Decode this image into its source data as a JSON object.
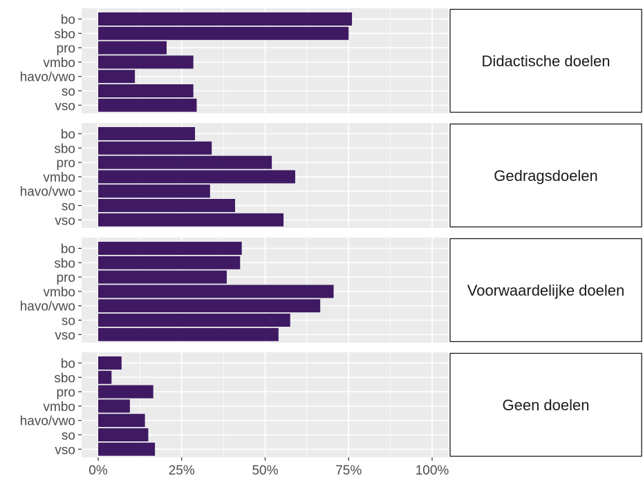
{
  "chart_data": {
    "type": "bar",
    "orientation": "horizontal",
    "categories": [
      "bo",
      "sbo",
      "pro",
      "vmbo",
      "havo/vwo",
      "so",
      "vso"
    ],
    "xlim": [
      0,
      100
    ],
    "x_ticks": [
      "0%",
      "25%",
      "50%",
      "75%",
      "100%"
    ],
    "bar_color": "#3f1a63",
    "panel_color": "#ebebeb",
    "grid_color": "#ffffff",
    "grid": true,
    "panels": [
      {
        "label": "Didactische doelen",
        "values": [
          76,
          75,
          20.5,
          28.5,
          11,
          28.5,
          29.5
        ]
      },
      {
        "label": "Gedragsdoelen",
        "values": [
          29,
          34,
          52,
          59,
          33.5,
          41,
          55.5
        ]
      },
      {
        "label": "Voorwaardelijke doelen",
        "values": [
          43,
          42.5,
          38.5,
          70.5,
          66.5,
          57.5,
          54
        ]
      },
      {
        "label": "Geen doelen",
        "values": [
          7,
          4,
          16.5,
          9.5,
          14,
          15,
          17
        ]
      }
    ]
  }
}
